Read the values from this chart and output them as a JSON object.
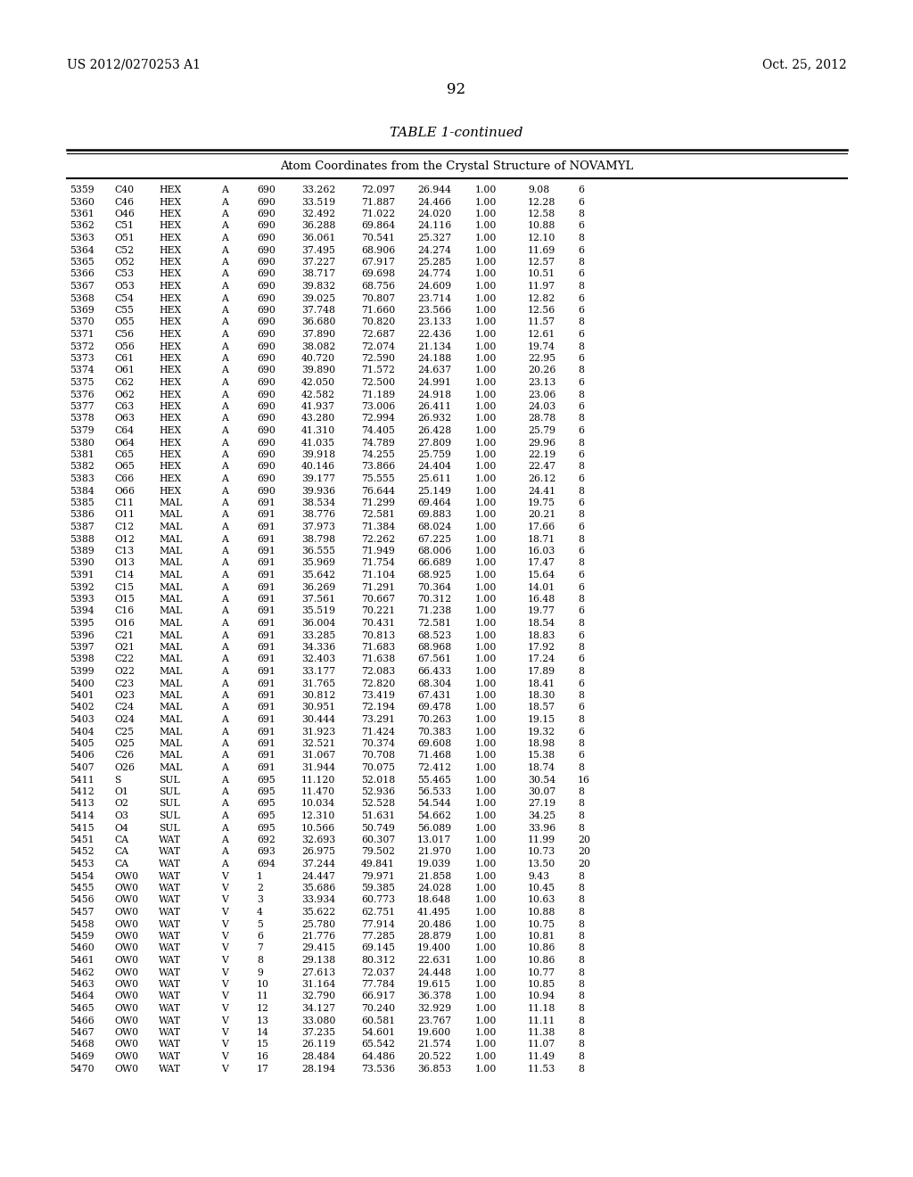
{
  "header_left": "US 2012/0270253 A1",
  "header_right": "Oct. 25, 2012",
  "page_number": "92",
  "table_title": "TABLE 1-continued",
  "table_subtitle": "Atom Coordinates from the Crystal Structure of NOVAMYL",
  "rows": [
    [
      "5359",
      "C40",
      "HEX",
      "A",
      "690",
      "33.262",
      "72.097",
      "26.944",
      "1.00",
      "9.08",
      "6"
    ],
    [
      "5360",
      "C46",
      "HEX",
      "A",
      "690",
      "33.519",
      "71.887",
      "24.466",
      "1.00",
      "12.28",
      "6"
    ],
    [
      "5361",
      "O46",
      "HEX",
      "A",
      "690",
      "32.492",
      "71.022",
      "24.020",
      "1.00",
      "12.58",
      "8"
    ],
    [
      "5362",
      "C51",
      "HEX",
      "A",
      "690",
      "36.288",
      "69.864",
      "24.116",
      "1.00",
      "10.88",
      "6"
    ],
    [
      "5363",
      "O51",
      "HEX",
      "A",
      "690",
      "36.061",
      "70.541",
      "25.327",
      "1.00",
      "12.10",
      "8"
    ],
    [
      "5364",
      "C52",
      "HEX",
      "A",
      "690",
      "37.495",
      "68.906",
      "24.274",
      "1.00",
      "11.69",
      "6"
    ],
    [
      "5365",
      "O52",
      "HEX",
      "A",
      "690",
      "37.227",
      "67.917",
      "25.285",
      "1.00",
      "12.57",
      "8"
    ],
    [
      "5366",
      "C53",
      "HEX",
      "A",
      "690",
      "38.717",
      "69.698",
      "24.774",
      "1.00",
      "10.51",
      "6"
    ],
    [
      "5367",
      "O53",
      "HEX",
      "A",
      "690",
      "39.832",
      "68.756",
      "24.609",
      "1.00",
      "11.97",
      "8"
    ],
    [
      "5368",
      "C54",
      "HEX",
      "A",
      "690",
      "39.025",
      "70.807",
      "23.714",
      "1.00",
      "12.82",
      "6"
    ],
    [
      "5369",
      "C55",
      "HEX",
      "A",
      "690",
      "37.748",
      "71.660",
      "23.566",
      "1.00",
      "12.56",
      "6"
    ],
    [
      "5370",
      "O55",
      "HEX",
      "A",
      "690",
      "36.680",
      "70.820",
      "23.133",
      "1.00",
      "11.57",
      "8"
    ],
    [
      "5371",
      "C56",
      "HEX",
      "A",
      "690",
      "37.890",
      "72.687",
      "22.436",
      "1.00",
      "12.61",
      "6"
    ],
    [
      "5372",
      "O56",
      "HEX",
      "A",
      "690",
      "38.082",
      "72.074",
      "21.134",
      "1.00",
      "19.74",
      "8"
    ],
    [
      "5373",
      "C61",
      "HEX",
      "A",
      "690",
      "40.720",
      "72.590",
      "24.188",
      "1.00",
      "22.95",
      "6"
    ],
    [
      "5374",
      "O61",
      "HEX",
      "A",
      "690",
      "39.890",
      "71.572",
      "24.637",
      "1.00",
      "20.26",
      "8"
    ],
    [
      "5375",
      "C62",
      "HEX",
      "A",
      "690",
      "42.050",
      "72.500",
      "24.991",
      "1.00",
      "23.13",
      "6"
    ],
    [
      "5376",
      "O62",
      "HEX",
      "A",
      "690",
      "42.582",
      "71.189",
      "24.918",
      "1.00",
      "23.06",
      "8"
    ],
    [
      "5377",
      "C63",
      "HEX",
      "A",
      "690",
      "41.937",
      "73.006",
      "26.411",
      "1.00",
      "24.03",
      "6"
    ],
    [
      "5378",
      "O63",
      "HEX",
      "A",
      "690",
      "43.280",
      "72.994",
      "26.932",
      "1.00",
      "28.78",
      "8"
    ],
    [
      "5379",
      "C64",
      "HEX",
      "A",
      "690",
      "41.310",
      "74.405",
      "26.428",
      "1.00",
      "25.79",
      "6"
    ],
    [
      "5380",
      "O64",
      "HEX",
      "A",
      "690",
      "41.035",
      "74.789",
      "27.809",
      "1.00",
      "29.96",
      "8"
    ],
    [
      "5381",
      "C65",
      "HEX",
      "A",
      "690",
      "39.918",
      "74.255",
      "25.759",
      "1.00",
      "22.19",
      "6"
    ],
    [
      "5382",
      "O65",
      "HEX",
      "A",
      "690",
      "40.146",
      "73.866",
      "24.404",
      "1.00",
      "22.47",
      "8"
    ],
    [
      "5383",
      "C66",
      "HEX",
      "A",
      "690",
      "39.177",
      "75.555",
      "25.611",
      "1.00",
      "26.12",
      "6"
    ],
    [
      "5384",
      "O66",
      "HEX",
      "A",
      "690",
      "39.936",
      "76.644",
      "25.149",
      "1.00",
      "24.41",
      "8"
    ],
    [
      "5385",
      "C11",
      "MAL",
      "A",
      "691",
      "38.534",
      "71.299",
      "69.464",
      "1.00",
      "19.75",
      "6"
    ],
    [
      "5386",
      "O11",
      "MAL",
      "A",
      "691",
      "38.776",
      "72.581",
      "69.883",
      "1.00",
      "20.21",
      "8"
    ],
    [
      "5387",
      "C12",
      "MAL",
      "A",
      "691",
      "37.973",
      "71.384",
      "68.024",
      "1.00",
      "17.66",
      "6"
    ],
    [
      "5388",
      "O12",
      "MAL",
      "A",
      "691",
      "38.798",
      "72.262",
      "67.225",
      "1.00",
      "18.71",
      "8"
    ],
    [
      "5389",
      "C13",
      "MAL",
      "A",
      "691",
      "36.555",
      "71.949",
      "68.006",
      "1.00",
      "16.03",
      "6"
    ],
    [
      "5390",
      "O13",
      "MAL",
      "A",
      "691",
      "35.969",
      "71.754",
      "66.689",
      "1.00",
      "17.47",
      "8"
    ],
    [
      "5391",
      "C14",
      "MAL",
      "A",
      "691",
      "35.642",
      "71.104",
      "68.925",
      "1.00",
      "15.64",
      "6"
    ],
    [
      "5392",
      "C15",
      "MAL",
      "A",
      "691",
      "36.269",
      "71.291",
      "70.364",
      "1.00",
      "14.01",
      "6"
    ],
    [
      "5393",
      "O15",
      "MAL",
      "A",
      "691",
      "37.561",
      "70.667",
      "70.312",
      "1.00",
      "16.48",
      "8"
    ],
    [
      "5394",
      "C16",
      "MAL",
      "A",
      "691",
      "35.519",
      "70.221",
      "71.238",
      "1.00",
      "19.77",
      "6"
    ],
    [
      "5395",
      "O16",
      "MAL",
      "A",
      "691",
      "36.004",
      "70.431",
      "72.581",
      "1.00",
      "18.54",
      "8"
    ],
    [
      "5396",
      "C21",
      "MAL",
      "A",
      "691",
      "33.285",
      "70.813",
      "68.523",
      "1.00",
      "18.83",
      "6"
    ],
    [
      "5397",
      "O21",
      "MAL",
      "A",
      "691",
      "34.336",
      "71.683",
      "68.968",
      "1.00",
      "17.92",
      "8"
    ],
    [
      "5398",
      "C22",
      "MAL",
      "A",
      "691",
      "32.403",
      "71.638",
      "67.561",
      "1.00",
      "17.24",
      "6"
    ],
    [
      "5399",
      "O22",
      "MAL",
      "A",
      "691",
      "33.177",
      "72.083",
      "66.433",
      "1.00",
      "17.89",
      "8"
    ],
    [
      "5400",
      "C23",
      "MAL",
      "A",
      "691",
      "31.765",
      "72.820",
      "68.304",
      "1.00",
      "18.41",
      "6"
    ],
    [
      "5401",
      "O23",
      "MAL",
      "A",
      "691",
      "30.812",
      "73.419",
      "67.431",
      "1.00",
      "18.30",
      "8"
    ],
    [
      "5402",
      "C24",
      "MAL",
      "A",
      "691",
      "30.951",
      "72.194",
      "69.478",
      "1.00",
      "18.57",
      "6"
    ],
    [
      "5403",
      "O24",
      "MAL",
      "A",
      "691",
      "30.444",
      "73.291",
      "70.263",
      "1.00",
      "19.15",
      "8"
    ],
    [
      "5404",
      "C25",
      "MAL",
      "A",
      "691",
      "31.923",
      "71.424",
      "70.383",
      "1.00",
      "19.32",
      "6"
    ],
    [
      "5405",
      "O25",
      "MAL",
      "A",
      "691",
      "32.521",
      "70.374",
      "69.608",
      "1.00",
      "18.98",
      "8"
    ],
    [
      "5406",
      "C26",
      "MAL",
      "A",
      "691",
      "31.067",
      "70.708",
      "71.468",
      "1.00",
      "15.38",
      "6"
    ],
    [
      "5407",
      "O26",
      "MAL",
      "A",
      "691",
      "31.944",
      "70.075",
      "72.412",
      "1.00",
      "18.74",
      "8"
    ],
    [
      "5411",
      "S",
      "SUL",
      "A",
      "695",
      "11.120",
      "52.018",
      "55.465",
      "1.00",
      "30.54",
      "16"
    ],
    [
      "5412",
      "O1",
      "SUL",
      "A",
      "695",
      "11.470",
      "52.936",
      "56.533",
      "1.00",
      "30.07",
      "8"
    ],
    [
      "5413",
      "O2",
      "SUL",
      "A",
      "695",
      "10.034",
      "52.528",
      "54.544",
      "1.00",
      "27.19",
      "8"
    ],
    [
      "5414",
      "O3",
      "SUL",
      "A",
      "695",
      "12.310",
      "51.631",
      "54.662",
      "1.00",
      "34.25",
      "8"
    ],
    [
      "5415",
      "O4",
      "SUL",
      "A",
      "695",
      "10.566",
      "50.749",
      "56.089",
      "1.00",
      "33.96",
      "8"
    ],
    [
      "5451",
      "CA",
      "WAT",
      "A",
      "692",
      "32.693",
      "60.307",
      "13.017",
      "1.00",
      "11.99",
      "20"
    ],
    [
      "5452",
      "CA",
      "WAT",
      "A",
      "693",
      "26.975",
      "79.502",
      "21.970",
      "1.00",
      "10.73",
      "20"
    ],
    [
      "5453",
      "CA",
      "WAT",
      "A",
      "694",
      "37.244",
      "49.841",
      "19.039",
      "1.00",
      "13.50",
      "20"
    ],
    [
      "5454",
      "OW0",
      "WAT",
      "V",
      "1",
      "24.447",
      "79.971",
      "21.858",
      "1.00",
      "9.43",
      "8"
    ],
    [
      "5455",
      "OW0",
      "WAT",
      "V",
      "2",
      "35.686",
      "59.385",
      "24.028",
      "1.00",
      "10.45",
      "8"
    ],
    [
      "5456",
      "OW0",
      "WAT",
      "V",
      "3",
      "33.934",
      "60.773",
      "18.648",
      "1.00",
      "10.63",
      "8"
    ],
    [
      "5457",
      "OW0",
      "WAT",
      "V",
      "4",
      "35.622",
      "62.751",
      "41.495",
      "1.00",
      "10.88",
      "8"
    ],
    [
      "5458",
      "OW0",
      "WAT",
      "V",
      "5",
      "25.780",
      "77.914",
      "20.486",
      "1.00",
      "10.75",
      "8"
    ],
    [
      "5459",
      "OW0",
      "WAT",
      "V",
      "6",
      "21.776",
      "77.285",
      "28.879",
      "1.00",
      "10.81",
      "8"
    ],
    [
      "5460",
      "OW0",
      "WAT",
      "V",
      "7",
      "29.415",
      "69.145",
      "19.400",
      "1.00",
      "10.86",
      "8"
    ],
    [
      "5461",
      "OW0",
      "WAT",
      "V",
      "8",
      "29.138",
      "80.312",
      "22.631",
      "1.00",
      "10.86",
      "8"
    ],
    [
      "5462",
      "OW0",
      "WAT",
      "V",
      "9",
      "27.613",
      "72.037",
      "24.448",
      "1.00",
      "10.77",
      "8"
    ],
    [
      "5463",
      "OW0",
      "WAT",
      "V",
      "10",
      "31.164",
      "77.784",
      "19.615",
      "1.00",
      "10.85",
      "8"
    ],
    [
      "5464",
      "OW0",
      "WAT",
      "V",
      "11",
      "32.790",
      "66.917",
      "36.378",
      "1.00",
      "10.94",
      "8"
    ],
    [
      "5465",
      "OW0",
      "WAT",
      "V",
      "12",
      "34.127",
      "70.240",
      "32.929",
      "1.00",
      "11.18",
      "8"
    ],
    [
      "5466",
      "OW0",
      "WAT",
      "V",
      "13",
      "33.080",
      "60.581",
      "23.767",
      "1.00",
      "11.11",
      "8"
    ],
    [
      "5467",
      "OW0",
      "WAT",
      "V",
      "14",
      "37.235",
      "54.601",
      "19.600",
      "1.00",
      "11.38",
      "8"
    ],
    [
      "5468",
      "OW0",
      "WAT",
      "V",
      "15",
      "26.119",
      "65.542",
      "21.574",
      "1.00",
      "11.07",
      "8"
    ],
    [
      "5469",
      "OW0",
      "WAT",
      "V",
      "16",
      "28.484",
      "64.486",
      "20.522",
      "1.00",
      "11.49",
      "8"
    ],
    [
      "5470",
      "OW0",
      "WAT",
      "V",
      "17",
      "28.194",
      "73.536",
      "36.853",
      "1.00",
      "11.53",
      "8"
    ]
  ]
}
